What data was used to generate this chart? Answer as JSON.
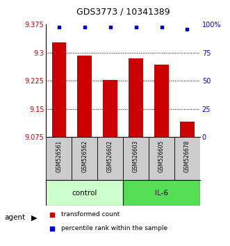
{
  "title": "GDS3773 / 10341389",
  "samples": [
    "GSM526561",
    "GSM526562",
    "GSM526602",
    "GSM526603",
    "GSM526605",
    "GSM526678"
  ],
  "bar_values": [
    9.328,
    9.292,
    9.228,
    9.285,
    9.268,
    9.115
  ],
  "percentile_values": [
    98,
    98,
    98,
    98,
    98,
    96
  ],
  "ylim_left": [
    9.075,
    9.375
  ],
  "ylim_right": [
    0,
    100
  ],
  "yticks_left": [
    9.075,
    9.15,
    9.225,
    9.3,
    9.375
  ],
  "yticks_right": [
    0,
    25,
    50,
    75,
    100
  ],
  "ytick_labels_right": [
    "0",
    "25",
    "50",
    "75",
    "100%"
  ],
  "bar_color": "#cc0000",
  "dot_color": "#0000cc",
  "control_label": "control",
  "il6_label": "IL-6",
  "agent_label": "agent",
  "control_bg": "#ccffcc",
  "il6_bg": "#55dd55",
  "sample_box_bg": "#cccccc",
  "legend_red_label": "transformed count",
  "legend_blue_label": "percentile rank within the sample",
  "title_fontsize": 9,
  "tick_fontsize": 7,
  "label_fontsize": 7.5
}
